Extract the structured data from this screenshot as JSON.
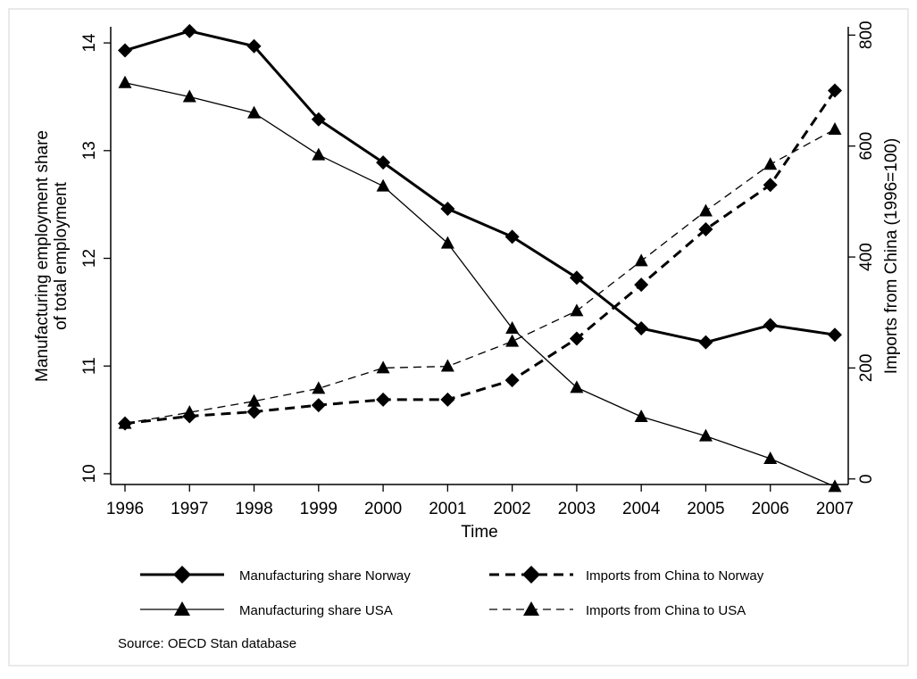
{
  "chart_data": {
    "type": "line",
    "title": "",
    "x": [
      1996,
      1997,
      1998,
      1999,
      2000,
      2001,
      2002,
      2003,
      2004,
      2005,
      2006,
      2007
    ],
    "xlabel": "Time",
    "xticks": [
      "1996",
      "1997",
      "1998",
      "1999",
      "2000",
      "2001",
      "2002",
      "2003",
      "2004",
      "2005",
      "2006",
      "2007"
    ],
    "ylabel_left_lines": [
      "Manufacturing employment share",
      "of total employment"
    ],
    "ylabel_right": "Imports from China (1996=100)",
    "ylim_left": [
      9.9,
      14.15
    ],
    "ylim_right": [
      -10,
      815
    ],
    "yticks_left": [
      "10",
      "11",
      "12",
      "13",
      "14"
    ],
    "yticks_right": [
      "0",
      "200",
      "400",
      "600",
      "800"
    ],
    "grid": false,
    "legend_position": "bottom",
    "series": [
      {
        "name": "Manufacturing share Norway",
        "axis": "left",
        "line": "solid-thick",
        "marker": "diamond",
        "values": [
          13.93,
          14.11,
          13.97,
          13.29,
          12.89,
          12.46,
          12.2,
          11.82,
          11.35,
          11.22,
          11.38,
          11.29
        ]
      },
      {
        "name": "Manufacturing share USA",
        "axis": "left",
        "line": "solid-thin",
        "marker": "triangle",
        "values": [
          13.63,
          13.5,
          13.35,
          12.96,
          12.67,
          12.14,
          11.35,
          10.8,
          10.53,
          10.35,
          10.14,
          9.88
        ]
      },
      {
        "name": "Imports from China to Norway",
        "axis": "right",
        "line": "dash-thick",
        "marker": "diamond",
        "values": [
          100,
          113,
          121,
          133,
          143,
          143,
          178,
          253,
          350,
          450,
          530,
          700
        ]
      },
      {
        "name": "Imports from China to USA",
        "axis": "right",
        "line": "dash-thin",
        "marker": "triangle",
        "values": [
          100,
          120,
          140,
          163,
          200,
          203,
          248,
          303,
          393,
          483,
          567,
          630
        ]
      }
    ],
    "source_note": "Source: OECD Stan database",
    "colors": {
      "line": "#000000",
      "frame": "#e3e3e3",
      "background": "#ffffff"
    }
  }
}
